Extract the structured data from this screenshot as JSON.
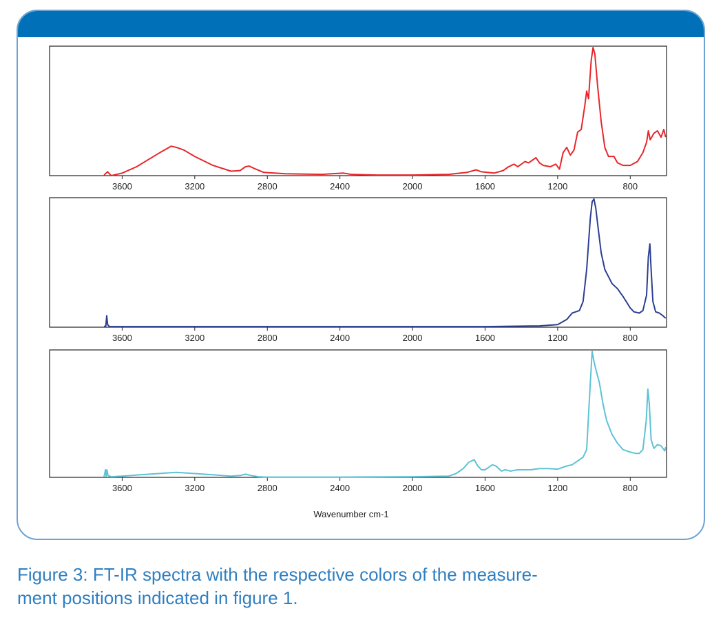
{
  "caption": "Figure 3: FT-IR spectra with the respective colors of the measure-ment positions indicated in figure 1.",
  "caption_lines": [
    "Figure 3: FT-IR spectra with the respective colors of the measure-",
    "ment positions indicated in figure 1."
  ],
  "colors": {
    "frame_header": "#0070b8",
    "frame_border": "#6fa3d2",
    "caption": "#2f7fc1"
  },
  "chart_data": [
    {
      "type": "line",
      "title": "",
      "xlabel": "",
      "ylabel": "",
      "xlim": [
        4000,
        600
      ],
      "ylim": [
        0,
        1
      ],
      "x_reversed": true,
      "x_ticks": [
        3600,
        3200,
        2800,
        2400,
        2000,
        1600,
        1200,
        800
      ],
      "y_ticks": [],
      "grid": false,
      "series": [
        {
          "color": "#e8262a",
          "points": [
            [
              3700,
              0.005
            ],
            [
              3680,
              0.03
            ],
            [
              3660,
              0.0
            ],
            [
              3600,
              0.02
            ],
            [
              3520,
              0.07
            ],
            [
              3450,
              0.13
            ],
            [
              3380,
              0.19
            ],
            [
              3330,
              0.23
            ],
            [
              3300,
              0.22
            ],
            [
              3260,
              0.2
            ],
            [
              3200,
              0.15
            ],
            [
              3100,
              0.08
            ],
            [
              3000,
              0.035
            ],
            [
              2950,
              0.04
            ],
            [
              2920,
              0.07
            ],
            [
              2900,
              0.075
            ],
            [
              2870,
              0.055
            ],
            [
              2820,
              0.025
            ],
            [
              2700,
              0.015
            ],
            [
              2500,
              0.01
            ],
            [
              2380,
              0.02
            ],
            [
              2340,
              0.01
            ],
            [
              2200,
              0.005
            ],
            [
              2000,
              0.005
            ],
            [
              1800,
              0.01
            ],
            [
              1700,
              0.025
            ],
            [
              1650,
              0.045
            ],
            [
              1620,
              0.03
            ],
            [
              1550,
              0.02
            ],
            [
              1500,
              0.04
            ],
            [
              1470,
              0.07
            ],
            [
              1440,
              0.09
            ],
            [
              1420,
              0.07
            ],
            [
              1400,
              0.09
            ],
            [
              1380,
              0.11
            ],
            [
              1360,
              0.1
            ],
            [
              1340,
              0.12
            ],
            [
              1320,
              0.14
            ],
            [
              1300,
              0.1
            ],
            [
              1280,
              0.08
            ],
            [
              1240,
              0.07
            ],
            [
              1210,
              0.09
            ],
            [
              1190,
              0.05
            ],
            [
              1170,
              0.18
            ],
            [
              1150,
              0.22
            ],
            [
              1130,
              0.16
            ],
            [
              1110,
              0.2
            ],
            [
              1090,
              0.34
            ],
            [
              1070,
              0.36
            ],
            [
              1050,
              0.55
            ],
            [
              1040,
              0.66
            ],
            [
              1030,
              0.6
            ],
            [
              1015,
              0.9
            ],
            [
              1005,
              1.0
            ],
            [
              995,
              0.95
            ],
            [
              980,
              0.7
            ],
            [
              960,
              0.42
            ],
            [
              940,
              0.22
            ],
            [
              920,
              0.15
            ],
            [
              890,
              0.15
            ],
            [
              870,
              0.1
            ],
            [
              840,
              0.08
            ],
            [
              800,
              0.08
            ],
            [
              760,
              0.11
            ],
            [
              730,
              0.18
            ],
            [
              710,
              0.26
            ],
            [
              700,
              0.35
            ],
            [
              690,
              0.28
            ],
            [
              670,
              0.33
            ],
            [
              650,
              0.35
            ],
            [
              630,
              0.3
            ],
            [
              615,
              0.36
            ],
            [
              605,
              0.3
            ]
          ]
        }
      ]
    },
    {
      "type": "line",
      "title": "",
      "xlabel": "",
      "ylabel": "",
      "xlim": [
        4000,
        600
      ],
      "ylim": [
        0,
        1
      ],
      "x_reversed": true,
      "x_ticks": [
        3600,
        3200,
        2800,
        2400,
        2000,
        1600,
        1200,
        800
      ],
      "y_ticks": [],
      "grid": false,
      "series": [
        {
          "color": "#2b3e91",
          "points": [
            [
              3700,
              0.005
            ],
            [
              3690,
              0.01
            ],
            [
              3685,
              0.09
            ],
            [
              3680,
              0.02
            ],
            [
              3670,
              0.005
            ],
            [
              3500,
              0.005
            ],
            [
              3000,
              0.005
            ],
            [
              2500,
              0.005
            ],
            [
              2000,
              0.005
            ],
            [
              1600,
              0.005
            ],
            [
              1300,
              0.01
            ],
            [
              1200,
              0.02
            ],
            [
              1150,
              0.06
            ],
            [
              1120,
              0.11
            ],
            [
              1100,
              0.12
            ],
            [
              1080,
              0.13
            ],
            [
              1060,
              0.2
            ],
            [
              1040,
              0.45
            ],
            [
              1020,
              0.85
            ],
            [
              1010,
              0.98
            ],
            [
              1000,
              1.0
            ],
            [
              990,
              0.93
            ],
            [
              975,
              0.75
            ],
            [
              960,
              0.58
            ],
            [
              940,
              0.45
            ],
            [
              900,
              0.34
            ],
            [
              870,
              0.3
            ],
            [
              840,
              0.24
            ],
            [
              800,
              0.15
            ],
            [
              780,
              0.12
            ],
            [
              750,
              0.11
            ],
            [
              730,
              0.13
            ],
            [
              710,
              0.25
            ],
            [
              700,
              0.55
            ],
            [
              692,
              0.65
            ],
            [
              685,
              0.45
            ],
            [
              675,
              0.2
            ],
            [
              660,
              0.12
            ],
            [
              640,
              0.11
            ],
            [
              620,
              0.09
            ],
            [
              605,
              0.07
            ]
          ]
        }
      ]
    },
    {
      "type": "line",
      "title": "",
      "xlabel": "Wavenumber cm-1",
      "ylabel": "",
      "xlim": [
        4000,
        600
      ],
      "ylim": [
        0,
        1
      ],
      "x_reversed": true,
      "x_ticks": [
        3600,
        3200,
        2800,
        2400,
        2000,
        1600,
        1200,
        800
      ],
      "y_ticks": [],
      "grid": false,
      "series": [
        {
          "color": "#5cc3d4",
          "points": [
            [
              3700,
              0.005
            ],
            [
              3692,
              0.06
            ],
            [
              3688,
              0.01
            ],
            [
              3684,
              0.06
            ],
            [
              3678,
              0.015
            ],
            [
              3660,
              0.005
            ],
            [
              3600,
              0.01
            ],
            [
              3500,
              0.02
            ],
            [
              3400,
              0.03
            ],
            [
              3300,
              0.04
            ],
            [
              3200,
              0.03
            ],
            [
              3100,
              0.02
            ],
            [
              3000,
              0.01
            ],
            [
              2950,
              0.015
            ],
            [
              2920,
              0.025
            ],
            [
              2890,
              0.015
            ],
            [
              2850,
              0.005
            ],
            [
              2800,
              0.002
            ],
            [
              2400,
              0.002
            ],
            [
              2000,
              0.005
            ],
            [
              1800,
              0.01
            ],
            [
              1760,
              0.03
            ],
            [
              1720,
              0.07
            ],
            [
              1690,
              0.12
            ],
            [
              1660,
              0.14
            ],
            [
              1640,
              0.09
            ],
            [
              1620,
              0.06
            ],
            [
              1600,
              0.06
            ],
            [
              1580,
              0.08
            ],
            [
              1560,
              0.1
            ],
            [
              1540,
              0.09
            ],
            [
              1510,
              0.05
            ],
            [
              1490,
              0.06
            ],
            [
              1460,
              0.05
            ],
            [
              1420,
              0.06
            ],
            [
              1350,
              0.06
            ],
            [
              1300,
              0.07
            ],
            [
              1250,
              0.07
            ],
            [
              1200,
              0.065
            ],
            [
              1150,
              0.09
            ],
            [
              1120,
              0.1
            ],
            [
              1090,
              0.13
            ],
            [
              1060,
              0.16
            ],
            [
              1040,
              0.22
            ],
            [
              1020,
              0.75
            ],
            [
              1010,
              1.0
            ],
            [
              1000,
              0.92
            ],
            [
              990,
              0.86
            ],
            [
              970,
              0.75
            ],
            [
              950,
              0.58
            ],
            [
              930,
              0.45
            ],
            [
              900,
              0.34
            ],
            [
              870,
              0.27
            ],
            [
              840,
              0.22
            ],
            [
              800,
              0.2
            ],
            [
              770,
              0.19
            ],
            [
              750,
              0.19
            ],
            [
              730,
              0.22
            ],
            [
              712,
              0.45
            ],
            [
              703,
              0.7
            ],
            [
              695,
              0.58
            ],
            [
              685,
              0.3
            ],
            [
              670,
              0.23
            ],
            [
              650,
              0.26
            ],
            [
              630,
              0.25
            ],
            [
              610,
              0.21
            ],
            [
              605,
              0.24
            ]
          ]
        }
      ]
    }
  ]
}
